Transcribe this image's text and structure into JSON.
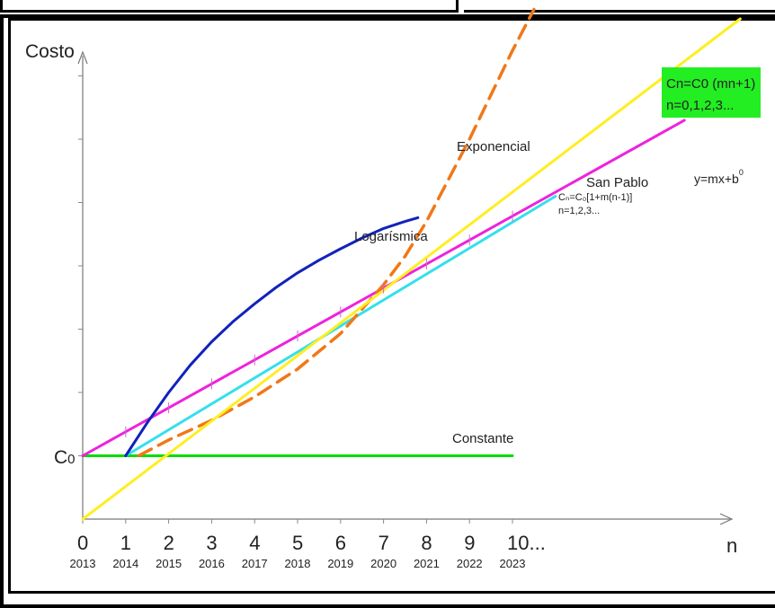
{
  "chart_data": {
    "type": "line",
    "ylabel": "Costo",
    "xlabel": "n",
    "y_origin_label": "C",
    "y_origin_sub": "0",
    "xlim": [
      0,
      15
    ],
    "ylim": [
      0,
      10
    ],
    "ticks": [
      {
        "n": "0",
        "year": "2013"
      },
      {
        "n": "1",
        "year": "2014"
      },
      {
        "n": "2",
        "year": "2015"
      },
      {
        "n": "3",
        "year": "2016"
      },
      {
        "n": "4",
        "year": "2017"
      },
      {
        "n": "5",
        "year": "2018"
      },
      {
        "n": "6",
        "year": "2019"
      },
      {
        "n": "7",
        "year": "2020"
      },
      {
        "n": "8",
        "year": "2021"
      },
      {
        "n": "9",
        "year": "2022"
      },
      {
        "n": "10...",
        "year": "2023"
      }
    ],
    "series": [
      {
        "name": "Constante",
        "color": "#00dd00",
        "style": "solid",
        "x": [
          0,
          10
        ],
        "y": [
          1,
          1
        ]
      },
      {
        "name": "San Pablo",
        "color": "#33e0ec",
        "style": "solid",
        "x": [
          1,
          11
        ],
        "y": [
          1,
          5.1
        ]
      },
      {
        "name": "",
        "color": "#ee22dd",
        "style": "solid",
        "x": [
          0,
          14
        ],
        "y": [
          1,
          6.3
        ]
      },
      {
        "name": "Logarísmica",
        "color": "#1122bb",
        "style": "solid",
        "x": [
          1,
          1.5,
          2,
          2.5,
          3,
          3.5,
          4,
          4.5,
          5,
          5.5,
          6,
          6.5,
          7,
          7.5,
          7.8
        ],
        "y": [
          1.0,
          1.52,
          2.0,
          2.43,
          2.8,
          3.12,
          3.4,
          3.66,
          3.89,
          4.09,
          4.27,
          4.44,
          4.59,
          4.7,
          4.76
        ]
      },
      {
        "name": "Exponencial",
        "color": "#f07818",
        "style": "dashed",
        "x": [
          1.3,
          2,
          3,
          4,
          5,
          6,
          7,
          7.5,
          8,
          8.5,
          9,
          9.5,
          10,
          10.5
        ],
        "y": [
          1.0,
          1.25,
          1.56,
          1.93,
          2.37,
          2.93,
          3.7,
          4.15,
          4.7,
          5.35,
          6.0,
          6.7,
          7.4,
          8.05
        ]
      },
      {
        "name": "",
        "color": "#ffee22",
        "style": "solid",
        "x": [
          0,
          15.3
        ],
        "y": [
          0,
          7.9
        ]
      }
    ],
    "annotations": {
      "exponencial": "Exponencial",
      "logaritmica": "Logarísmica",
      "san_pablo": "San Pablo",
      "san_pablo_formula": "Cₙ=C₀[1+m(n-1)]",
      "san_pablo_range": "n=1,2,3...",
      "linear_formula": "y=mx+b",
      "linear_exp": "0",
      "constante": "Constante",
      "green_box_line1": "Cn=C0 (mn+1)",
      "green_box_line2": "n=0,1,2,3..."
    }
  }
}
